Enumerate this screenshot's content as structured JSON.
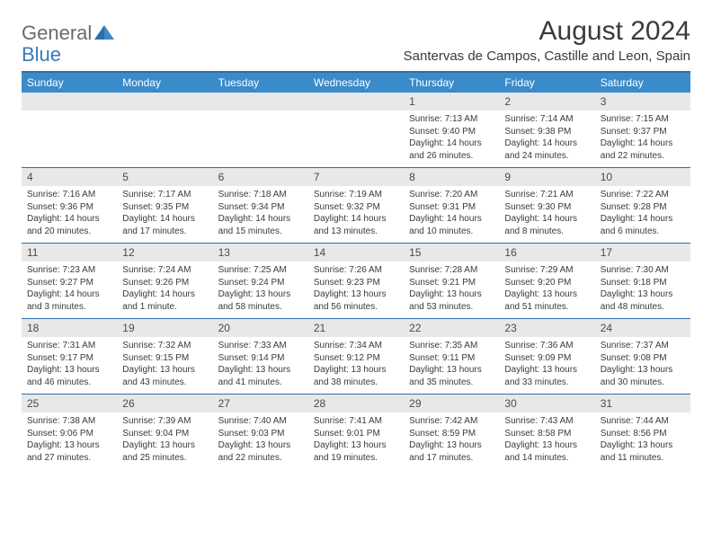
{
  "logo": {
    "general": "General",
    "blue": "Blue"
  },
  "title": "August 2024",
  "location": "Santervas de Campos, Castille and Leon, Spain",
  "colors": {
    "header_band": "#3a8bc9",
    "rule": "#2f6fa8",
    "daynum_band": "#e8e8e8",
    "text": "#3a3a3a",
    "logo_gray": "#6a6a6a",
    "logo_blue": "#3a7ab8"
  },
  "weekdays": [
    "Sunday",
    "Monday",
    "Tuesday",
    "Wednesday",
    "Thursday",
    "Friday",
    "Saturday"
  ],
  "weeks": [
    [
      {
        "n": "",
        "sr": "",
        "ss": "",
        "dl": ""
      },
      {
        "n": "",
        "sr": "",
        "ss": "",
        "dl": ""
      },
      {
        "n": "",
        "sr": "",
        "ss": "",
        "dl": ""
      },
      {
        "n": "",
        "sr": "",
        "ss": "",
        "dl": ""
      },
      {
        "n": "1",
        "sr": "Sunrise: 7:13 AM",
        "ss": "Sunset: 9:40 PM",
        "dl": "Daylight: 14 hours and 26 minutes."
      },
      {
        "n": "2",
        "sr": "Sunrise: 7:14 AM",
        "ss": "Sunset: 9:38 PM",
        "dl": "Daylight: 14 hours and 24 minutes."
      },
      {
        "n": "3",
        "sr": "Sunrise: 7:15 AM",
        "ss": "Sunset: 9:37 PM",
        "dl": "Daylight: 14 hours and 22 minutes."
      }
    ],
    [
      {
        "n": "4",
        "sr": "Sunrise: 7:16 AM",
        "ss": "Sunset: 9:36 PM",
        "dl": "Daylight: 14 hours and 20 minutes."
      },
      {
        "n": "5",
        "sr": "Sunrise: 7:17 AM",
        "ss": "Sunset: 9:35 PM",
        "dl": "Daylight: 14 hours and 17 minutes."
      },
      {
        "n": "6",
        "sr": "Sunrise: 7:18 AM",
        "ss": "Sunset: 9:34 PM",
        "dl": "Daylight: 14 hours and 15 minutes."
      },
      {
        "n": "7",
        "sr": "Sunrise: 7:19 AM",
        "ss": "Sunset: 9:32 PM",
        "dl": "Daylight: 14 hours and 13 minutes."
      },
      {
        "n": "8",
        "sr": "Sunrise: 7:20 AM",
        "ss": "Sunset: 9:31 PM",
        "dl": "Daylight: 14 hours and 10 minutes."
      },
      {
        "n": "9",
        "sr": "Sunrise: 7:21 AM",
        "ss": "Sunset: 9:30 PM",
        "dl": "Daylight: 14 hours and 8 minutes."
      },
      {
        "n": "10",
        "sr": "Sunrise: 7:22 AM",
        "ss": "Sunset: 9:28 PM",
        "dl": "Daylight: 14 hours and 6 minutes."
      }
    ],
    [
      {
        "n": "11",
        "sr": "Sunrise: 7:23 AM",
        "ss": "Sunset: 9:27 PM",
        "dl": "Daylight: 14 hours and 3 minutes."
      },
      {
        "n": "12",
        "sr": "Sunrise: 7:24 AM",
        "ss": "Sunset: 9:26 PM",
        "dl": "Daylight: 14 hours and 1 minute."
      },
      {
        "n": "13",
        "sr": "Sunrise: 7:25 AM",
        "ss": "Sunset: 9:24 PM",
        "dl": "Daylight: 13 hours and 58 minutes."
      },
      {
        "n": "14",
        "sr": "Sunrise: 7:26 AM",
        "ss": "Sunset: 9:23 PM",
        "dl": "Daylight: 13 hours and 56 minutes."
      },
      {
        "n": "15",
        "sr": "Sunrise: 7:28 AM",
        "ss": "Sunset: 9:21 PM",
        "dl": "Daylight: 13 hours and 53 minutes."
      },
      {
        "n": "16",
        "sr": "Sunrise: 7:29 AM",
        "ss": "Sunset: 9:20 PM",
        "dl": "Daylight: 13 hours and 51 minutes."
      },
      {
        "n": "17",
        "sr": "Sunrise: 7:30 AM",
        "ss": "Sunset: 9:18 PM",
        "dl": "Daylight: 13 hours and 48 minutes."
      }
    ],
    [
      {
        "n": "18",
        "sr": "Sunrise: 7:31 AM",
        "ss": "Sunset: 9:17 PM",
        "dl": "Daylight: 13 hours and 46 minutes."
      },
      {
        "n": "19",
        "sr": "Sunrise: 7:32 AM",
        "ss": "Sunset: 9:15 PM",
        "dl": "Daylight: 13 hours and 43 minutes."
      },
      {
        "n": "20",
        "sr": "Sunrise: 7:33 AM",
        "ss": "Sunset: 9:14 PM",
        "dl": "Daylight: 13 hours and 41 minutes."
      },
      {
        "n": "21",
        "sr": "Sunrise: 7:34 AM",
        "ss": "Sunset: 9:12 PM",
        "dl": "Daylight: 13 hours and 38 minutes."
      },
      {
        "n": "22",
        "sr": "Sunrise: 7:35 AM",
        "ss": "Sunset: 9:11 PM",
        "dl": "Daylight: 13 hours and 35 minutes."
      },
      {
        "n": "23",
        "sr": "Sunrise: 7:36 AM",
        "ss": "Sunset: 9:09 PM",
        "dl": "Daylight: 13 hours and 33 minutes."
      },
      {
        "n": "24",
        "sr": "Sunrise: 7:37 AM",
        "ss": "Sunset: 9:08 PM",
        "dl": "Daylight: 13 hours and 30 minutes."
      }
    ],
    [
      {
        "n": "25",
        "sr": "Sunrise: 7:38 AM",
        "ss": "Sunset: 9:06 PM",
        "dl": "Daylight: 13 hours and 27 minutes."
      },
      {
        "n": "26",
        "sr": "Sunrise: 7:39 AM",
        "ss": "Sunset: 9:04 PM",
        "dl": "Daylight: 13 hours and 25 minutes."
      },
      {
        "n": "27",
        "sr": "Sunrise: 7:40 AM",
        "ss": "Sunset: 9:03 PM",
        "dl": "Daylight: 13 hours and 22 minutes."
      },
      {
        "n": "28",
        "sr": "Sunrise: 7:41 AM",
        "ss": "Sunset: 9:01 PM",
        "dl": "Daylight: 13 hours and 19 minutes."
      },
      {
        "n": "29",
        "sr": "Sunrise: 7:42 AM",
        "ss": "Sunset: 8:59 PM",
        "dl": "Daylight: 13 hours and 17 minutes."
      },
      {
        "n": "30",
        "sr": "Sunrise: 7:43 AM",
        "ss": "Sunset: 8:58 PM",
        "dl": "Daylight: 13 hours and 14 minutes."
      },
      {
        "n": "31",
        "sr": "Sunrise: 7:44 AM",
        "ss": "Sunset: 8:56 PM",
        "dl": "Daylight: 13 hours and 11 minutes."
      }
    ]
  ]
}
